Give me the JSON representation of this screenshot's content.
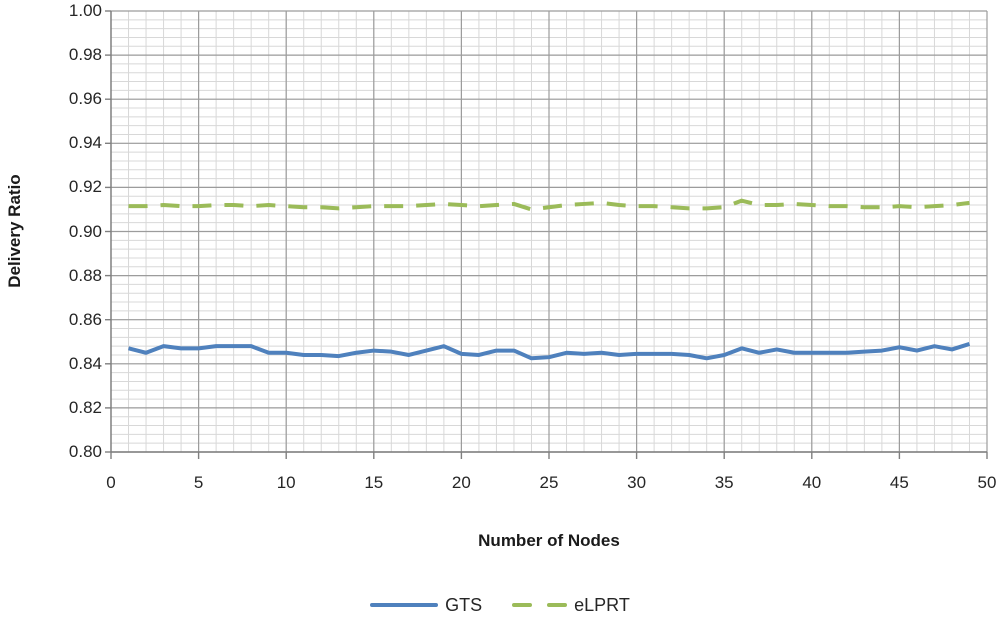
{
  "chart_data": {
    "type": "line",
    "title": "",
    "xlabel": "Number of Nodes",
    "ylabel": "Delivery Ratio",
    "xlim": [
      0,
      50
    ],
    "ylim": [
      0.8,
      1.0
    ],
    "x_ticks": [
      0,
      5,
      10,
      15,
      20,
      25,
      30,
      35,
      40,
      45,
      50
    ],
    "y_ticks": [
      0.8,
      0.82,
      0.84,
      0.86,
      0.88,
      0.9,
      0.92,
      0.94,
      0.96,
      0.98,
      1.0
    ],
    "x_minor_step": 1,
    "y_minor_step": 0.004,
    "grid": "major+minor",
    "legend_position": "bottom-center",
    "x": [
      1,
      2,
      3,
      4,
      5,
      6,
      7,
      8,
      9,
      10,
      11,
      12,
      13,
      14,
      15,
      16,
      17,
      18,
      19,
      20,
      21,
      22,
      23,
      24,
      25,
      26,
      27,
      28,
      29,
      30,
      31,
      32,
      33,
      34,
      35,
      36,
      37,
      38,
      39,
      40,
      41,
      42,
      43,
      44,
      45,
      46,
      47,
      48,
      49
    ],
    "series": [
      {
        "name": "GTS",
        "color": "#4F81BD",
        "line_style": "solid",
        "values": [
          0.847,
          0.845,
          0.848,
          0.847,
          0.847,
          0.848,
          0.848,
          0.848,
          0.845,
          0.845,
          0.844,
          0.844,
          0.8435,
          0.845,
          0.846,
          0.8455,
          0.844,
          0.846,
          0.848,
          0.8445,
          0.844,
          0.846,
          0.846,
          0.8425,
          0.843,
          0.845,
          0.8445,
          0.845,
          0.844,
          0.8445,
          0.8445,
          0.8445,
          0.844,
          0.8425,
          0.844,
          0.847,
          0.845,
          0.8465,
          0.845,
          0.845,
          0.845,
          0.845,
          0.8455,
          0.846,
          0.8475,
          0.846,
          0.848,
          0.8465,
          0.849
        ]
      },
      {
        "name": "eLPRT",
        "color": "#9BBB59",
        "line_style": "dashed",
        "values": [
          0.9115,
          0.9115,
          0.912,
          0.9115,
          0.9115,
          0.912,
          0.912,
          0.9115,
          0.912,
          0.9115,
          0.911,
          0.911,
          0.9105,
          0.911,
          0.9115,
          0.9115,
          0.9115,
          0.912,
          0.9125,
          0.912,
          0.9115,
          0.912,
          0.9125,
          0.91,
          0.911,
          0.912,
          0.9125,
          0.913,
          0.912,
          0.9115,
          0.9115,
          0.911,
          0.9105,
          0.9105,
          0.911,
          0.914,
          0.912,
          0.912,
          0.9125,
          0.912,
          0.9115,
          0.9115,
          0.911,
          0.911,
          0.9115,
          0.911,
          0.9115,
          0.912,
          0.913
        ]
      }
    ]
  },
  "colors": {
    "background": "#ffffff",
    "grid_minor": "#d8d8d8",
    "grid_major": "#9c9c9c",
    "axis": "#7f7f7f",
    "text": "#262626"
  }
}
